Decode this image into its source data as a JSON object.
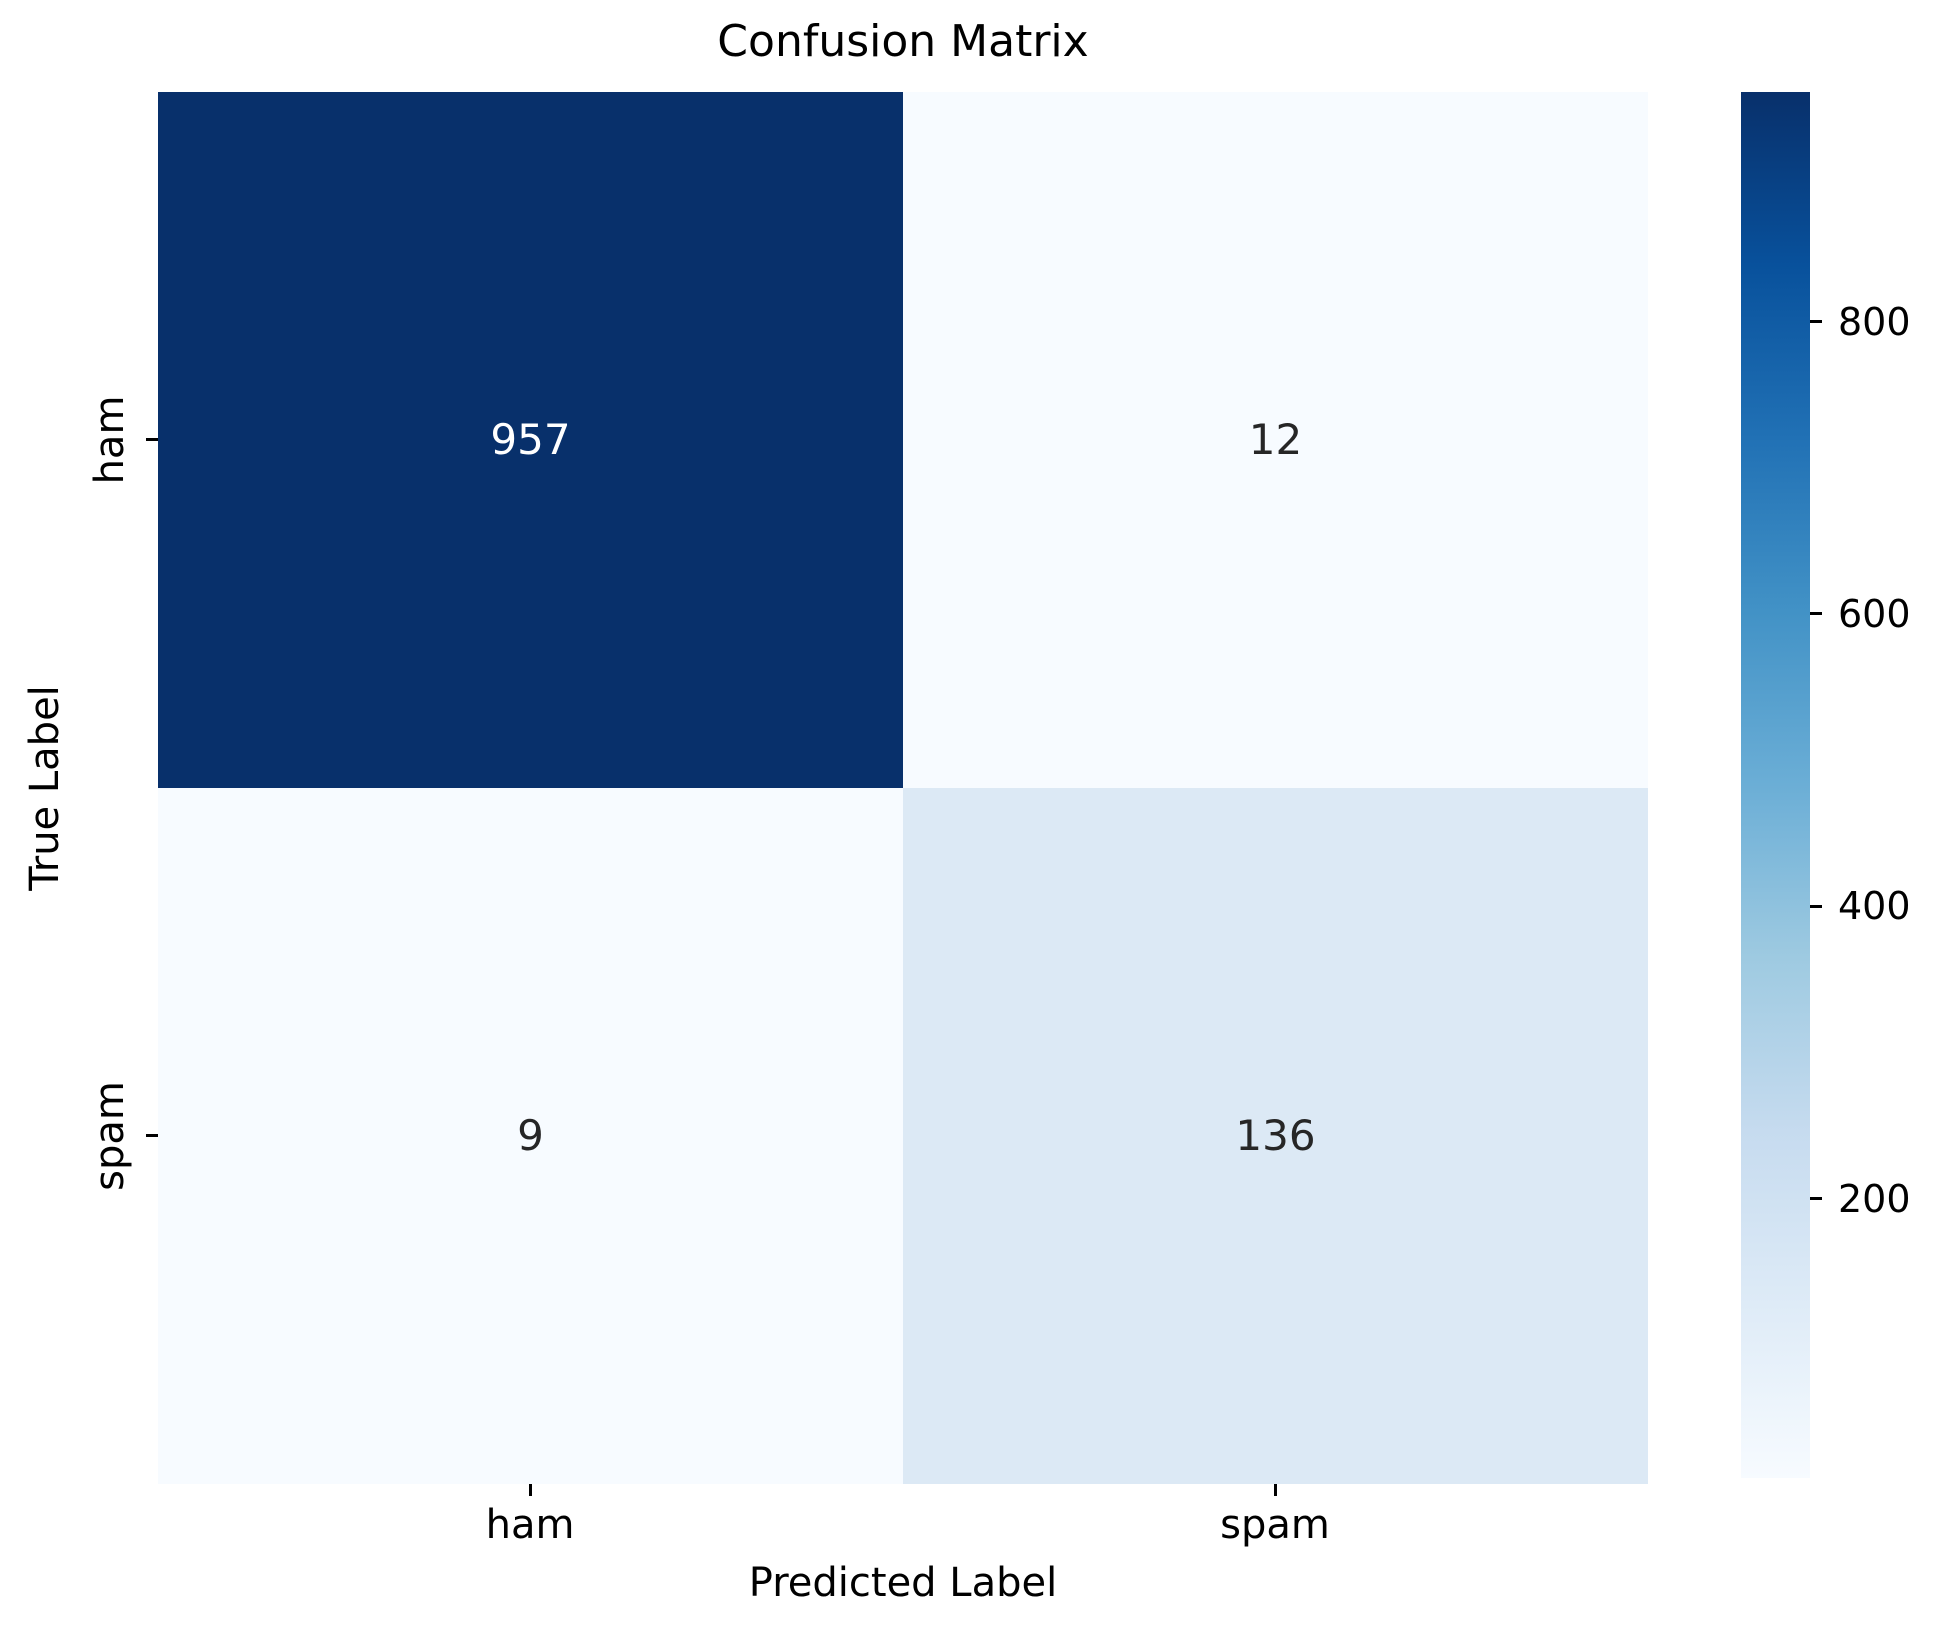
{
  "chart_data": {
    "type": "heatmap",
    "title": "Confusion Matrix",
    "xlabel": "Predicted Label",
    "ylabel": "True Label",
    "x_categories": [
      "ham",
      "spam"
    ],
    "y_categories": [
      "ham",
      "spam"
    ],
    "matrix": [
      [
        957,
        12
      ],
      [
        9,
        136
      ]
    ],
    "colormap": "Blues",
    "vmin": 9,
    "vmax": 957,
    "colorbar_ticks": [
      200,
      400,
      600,
      800
    ],
    "colormap_stops": [
      {
        "pos": 0.0,
        "color": "#f7fbff"
      },
      {
        "pos": 0.125,
        "color": "#deebf7"
      },
      {
        "pos": 0.25,
        "color": "#c6dbef"
      },
      {
        "pos": 0.375,
        "color": "#9ecae1"
      },
      {
        "pos": 0.5,
        "color": "#6baed6"
      },
      {
        "pos": 0.625,
        "color": "#4292c6"
      },
      {
        "pos": 0.75,
        "color": "#2171b5"
      },
      {
        "pos": 0.875,
        "color": "#08519c"
      },
      {
        "pos": 1.0,
        "color": "#08306b"
      }
    ],
    "cell_colors": [
      [
        "#08306b",
        "#f7fbff"
      ],
      [
        "#f7fbff",
        "#dce9f5"
      ]
    ],
    "cell_text_colors": [
      [
        "#ffffff",
        "#262626"
      ],
      [
        "#262626",
        "#262626"
      ]
    ],
    "grid": false,
    "legend": "colorbar-right"
  }
}
